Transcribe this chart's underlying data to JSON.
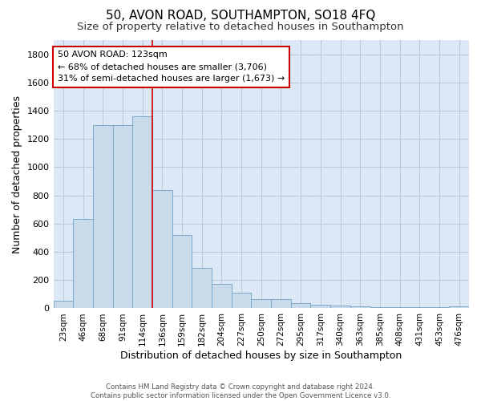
{
  "title1": "50, AVON ROAD, SOUTHAMPTON, SO18 4FQ",
  "title2": "Size of property relative to detached houses in Southampton",
  "xlabel": "Distribution of detached houses by size in Southampton",
  "ylabel": "Number of detached properties",
  "categories": [
    "23sqm",
    "46sqm",
    "68sqm",
    "91sqm",
    "114sqm",
    "136sqm",
    "159sqm",
    "182sqm",
    "204sqm",
    "227sqm",
    "250sqm",
    "272sqm",
    "295sqm",
    "317sqm",
    "340sqm",
    "363sqm",
    "385sqm",
    "408sqm",
    "431sqm",
    "453sqm",
    "476sqm"
  ],
  "values": [
    55,
    635,
    1300,
    1300,
    1360,
    840,
    520,
    285,
    175,
    110,
    65,
    65,
    35,
    25,
    18,
    12,
    10,
    8,
    8,
    8,
    12
  ],
  "bar_color": "#c9daea",
  "bar_edge_color": "#7aaac8",
  "vline_color": "#cc0000",
  "vline_x_idx": 4.5,
  "annotation_text": "50 AVON ROAD: 123sqm\n← 68% of detached houses are smaller (3,706)\n31% of semi-detached houses are larger (1,673) →",
  "annotation_box_color": "white",
  "annotation_box_edge_color": "#cc0000",
  "ylim": [
    0,
    1900
  ],
  "yticks": [
    0,
    200,
    400,
    600,
    800,
    1000,
    1200,
    1400,
    1600,
    1800
  ],
  "grid_color": "#c0c8d8",
  "bg_color": "#dce8f5",
  "footer": "Contains HM Land Registry data © Crown copyright and database right 2024.\nContains public sector information licensed under the Open Government Licence v3.0.",
  "title1_fontsize": 11,
  "title2_fontsize": 9.5,
  "ylabel_fontsize": 9,
  "xlabel_fontsize": 9,
  "annot_fontsize": 8
}
